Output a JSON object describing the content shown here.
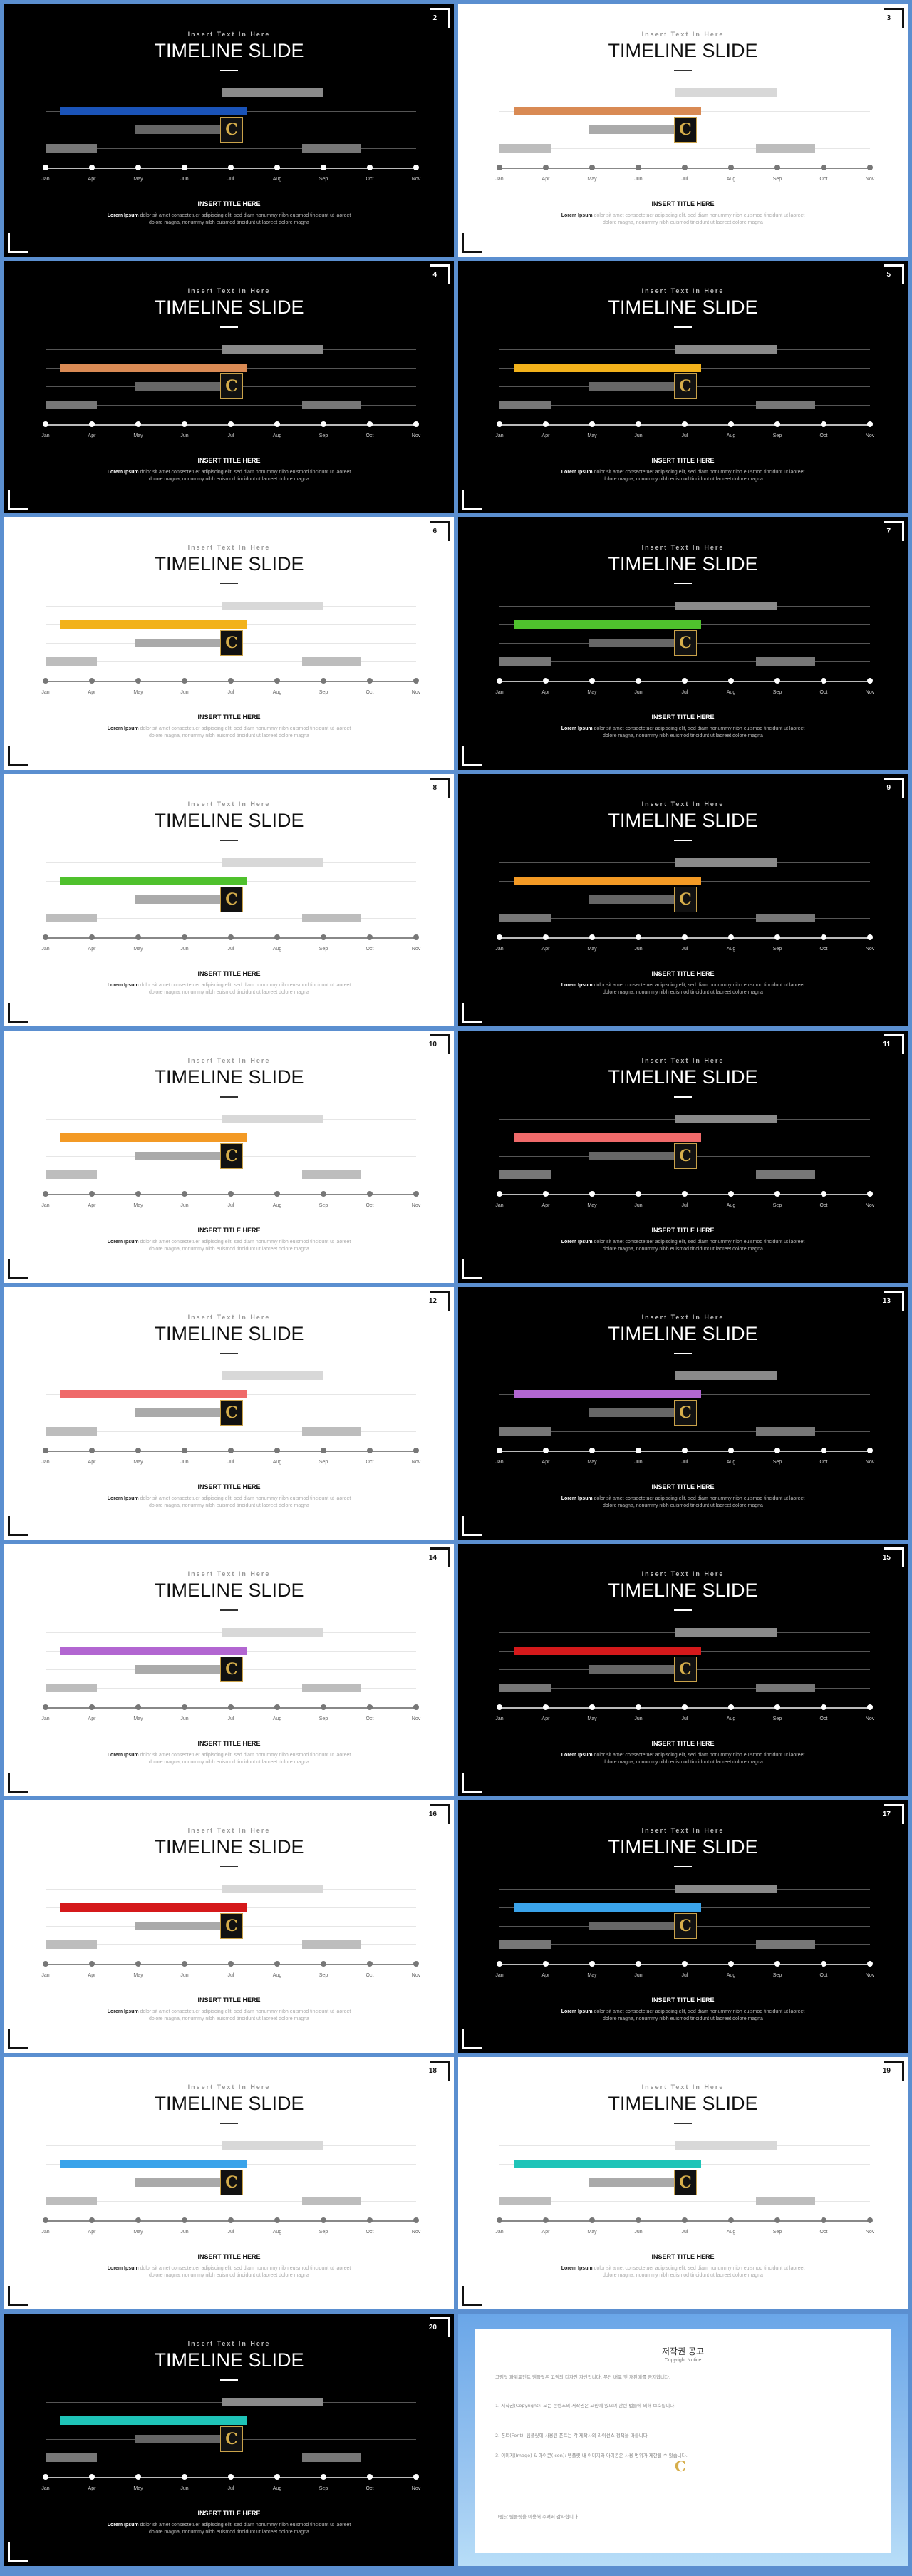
{
  "common": {
    "subtitle": "Insert Text In Here",
    "title": "TIMELINE SLIDE",
    "insert_title": "INSERT TITLE HERE",
    "body_bold": "Lorem Ipsum",
    "body_text": " dolor sit amet consectetuer adipiscing elit, sed diam nonummy nibh euismod tincidunt ut laoreet dolore magna, nonummy nibh euismod tincidunt ut laoreet dolore magna",
    "months": [
      "Jan",
      "Apr",
      "May",
      "Jun",
      "Jul",
      "Aug",
      "Sep",
      "Oct",
      "Nov"
    ],
    "logo_glyph": "C"
  },
  "slides": [
    {
      "page": "2",
      "theme": "dark",
      "accent": "#1a53b8"
    },
    {
      "page": "3",
      "theme": "light",
      "accent": "#d98a54"
    },
    {
      "page": "4",
      "theme": "dark",
      "accent": "#d98a54"
    },
    {
      "page": "5",
      "theme": "dark",
      "accent": "#f2b21b"
    },
    {
      "page": "6",
      "theme": "light",
      "accent": "#f2b21b"
    },
    {
      "page": "7",
      "theme": "dark",
      "accent": "#4fc12d"
    },
    {
      "page": "8",
      "theme": "light",
      "accent": "#4fc12d"
    },
    {
      "page": "9",
      "theme": "dark",
      "accent": "#f39a25"
    },
    {
      "page": "10",
      "theme": "light",
      "accent": "#f39a25"
    },
    {
      "page": "11",
      "theme": "dark",
      "accent": "#ef6a6a"
    },
    {
      "page": "12",
      "theme": "light",
      "accent": "#ef6a6a"
    },
    {
      "page": "13",
      "theme": "dark",
      "accent": "#b266d1"
    },
    {
      "page": "14",
      "theme": "light",
      "accent": "#b266d1"
    },
    {
      "page": "15",
      "theme": "dark",
      "accent": "#d5191b"
    },
    {
      "page": "16",
      "theme": "light",
      "accent": "#d5191b"
    },
    {
      "page": "17",
      "theme": "dark",
      "accent": "#3aa3ea"
    },
    {
      "page": "18",
      "theme": "light",
      "accent": "#3aa3ea"
    },
    {
      "page": "19",
      "theme": "light",
      "accent": "#1fc4b8"
    },
    {
      "page": "20",
      "theme": "dark",
      "accent": "#1fc4b8"
    }
  ],
  "copyright": {
    "title": "저작권 공고",
    "subtitle": "Copyright Notice",
    "paragraphs": [
      "고림닷 파워포인트 템플릿은 고림의 디자인 자산입니다. 무단 배포 및 재판매를 금지합니다.",
      "1. 저작권(Copyright): 모든 콘텐츠의 저작권은 고림에 있으며 관련 법률에 의해 보호됩니다.",
      "2. 폰트(Font): 템플릿에 사용된 폰트는 각 제작사의 라이선스 정책을 따릅니다.",
      "3. 이미지(Image) & 아이콘(Icon): 템플릿 내 이미지와 아이콘은 사용 범위가 제한될 수 있습니다.",
      "고림닷 템플릿을 이용해 주셔서 감사합니다."
    ]
  }
}
